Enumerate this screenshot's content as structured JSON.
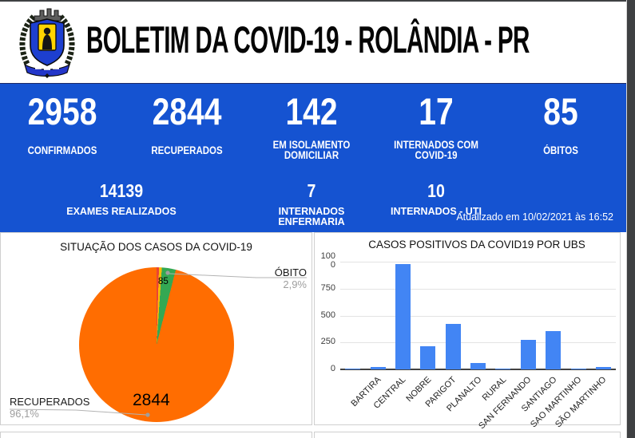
{
  "header": {
    "title": "BOLETIM DA COVID-19 - ROLÂNDIA - PR",
    "logo": "rolandia-coat-of-arms"
  },
  "stats": {
    "band_color": "#1553d1",
    "primary": [
      {
        "value": "2958",
        "label_lines": [
          "CONFIRMADOS",
          ""
        ]
      },
      {
        "value": "2844",
        "label_lines": [
          "RECUPERADOS",
          ""
        ]
      },
      {
        "value": "142",
        "label_lines": [
          "EM ISOLAMENTO",
          "DOMICILIAR"
        ]
      },
      {
        "value": "17",
        "label_lines": [
          "INTERNADOS COM",
          "COVID-19"
        ]
      },
      {
        "value": "85",
        "label_lines": [
          "ÓBITOS",
          ""
        ]
      }
    ],
    "secondary": [
      {
        "value": "14139",
        "label_lines": [
          "EXAMES REALIZADOS",
          ""
        ]
      },
      {
        "value": "7",
        "label_lines": [
          "INTERNADOS",
          "ENFERMARIA"
        ]
      },
      {
        "value": "10",
        "label_lines": [
          "INTERNADOS - UTI",
          ""
        ]
      }
    ],
    "updated_at": "Atualizado em 10/02/2021 às 16:52"
  },
  "chart_data": [
    {
      "type": "pie",
      "title": "SITUAÇÃO DOS CASOS DA COVID-19",
      "legend_position": "labeled-callouts",
      "slices": [
        {
          "label": "",
          "value": null,
          "percent": 0.5,
          "percent_label": "",
          "color": "#ea4335"
        },
        {
          "label": "",
          "value": null,
          "percent": 0.6,
          "percent_label": "",
          "color": "#fbbc04"
        },
        {
          "label": "ÓBITO",
          "value": 85,
          "percent": 2.9,
          "percent_label": "2,9%",
          "color": "#34a853"
        },
        {
          "label": "RECUPERADOS",
          "value": 2844,
          "percent": 96.1,
          "percent_label": "96,1%",
          "color": "#ff6d01"
        }
      ],
      "value_labels_shown": {
        "obito": "85",
        "recuperados": "2844"
      }
    },
    {
      "type": "bar",
      "title": "CASOS POSITIVOS DA COVID19 POR UBS",
      "categories": [
        "",
        "BARTIRA",
        "CENTRAL",
        "NOBRE",
        "PARIGOT",
        "PLANALTO",
        "RURAL",
        "SAN FERNANDO",
        "SANTIAGO",
        "SAO MARTINHO",
        "SÃO MARTINHO"
      ],
      "values": [
        6,
        20,
        975,
        217,
        422,
        56,
        3,
        274,
        358,
        3,
        20
      ],
      "bar_color": "#4285f4",
      "ylim": [
        0,
        1000
      ],
      "yticks": [
        0,
        250,
        500,
        750,
        1000
      ],
      "ytick_labels": [
        "0",
        "250",
        "500",
        "750",
        "1000"
      ],
      "grid": true,
      "legend": "none"
    }
  ]
}
